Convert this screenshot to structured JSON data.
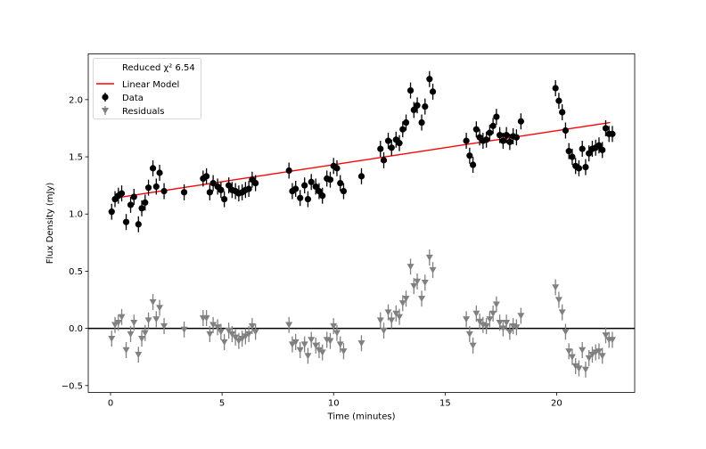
{
  "chart_data": {
    "type": "scatter",
    "xlabel": "Time (minutes)",
    "ylabel": "Flux Density (mJy)",
    "xlim": [
      -1.0,
      23.5
    ],
    "ylim": [
      -0.56,
      2.4
    ],
    "xticks": [
      0,
      5,
      10,
      15,
      20
    ],
    "yticks": [
      -0.5,
      0.0,
      0.5,
      1.0,
      1.5,
      2.0
    ],
    "xtick_labels": [
      "0",
      "5",
      "10",
      "15",
      "20"
    ],
    "ytick_labels": [
      "−0.5",
      "0.0",
      "0.5",
      "1.0",
      "1.5",
      "2.0"
    ],
    "zero_line": 0.0,
    "grid": false,
    "legend": {
      "placement": "top-left",
      "entries": [
        "Reduced χ² 6.54",
        "Linear Model",
        "Data",
        "Residuals"
      ]
    },
    "linear_model": {
      "name": "Linear Model",
      "color": "#ff0000",
      "x": [
        0.2,
        22.4
      ],
      "y": [
        1.14,
        1.8
      ]
    },
    "error_bar": 0.07,
    "series": [
      {
        "name": "Data",
        "marker": "circle",
        "color": "#000000",
        "x": [
          0.05,
          0.2,
          0.35,
          0.5,
          0.7,
          0.9,
          1.05,
          1.25,
          1.4,
          1.55,
          1.7,
          1.9,
          2.05,
          2.2,
          2.4,
          3.3,
          4.15,
          4.3,
          4.45,
          4.6,
          4.8,
          4.95,
          5.1,
          5.3,
          5.45,
          5.6,
          5.75,
          5.9,
          6.05,
          6.2,
          6.35,
          6.5,
          8.0,
          8.15,
          8.3,
          8.5,
          8.7,
          8.85,
          9.0,
          9.2,
          9.35,
          9.5,
          9.7,
          9.85,
          10.0,
          10.15,
          10.3,
          10.45,
          11.25,
          12.1,
          12.25,
          12.45,
          12.6,
          12.8,
          12.95,
          13.1,
          13.25,
          13.45,
          13.6,
          13.75,
          13.95,
          14.1,
          14.3,
          14.45,
          15.95,
          16.1,
          16.25,
          16.4,
          16.55,
          16.7,
          16.85,
          17.0,
          17.15,
          17.3,
          17.45,
          17.6,
          17.75,
          17.9,
          18.05,
          18.2,
          18.4,
          19.95,
          20.1,
          20.25,
          20.4,
          20.55,
          20.7,
          20.85,
          21.0,
          21.15,
          21.3,
          21.45,
          21.6,
          21.75,
          21.9,
          22.05,
          22.2,
          22.35,
          22.5
        ],
        "y": [
          1.02,
          1.13,
          1.16,
          1.18,
          0.93,
          1.08,
          1.15,
          0.91,
          1.05,
          1.1,
          1.23,
          1.4,
          1.24,
          1.36,
          1.2,
          1.19,
          1.31,
          1.33,
          1.19,
          1.27,
          1.24,
          1.21,
          1.13,
          1.25,
          1.21,
          1.2,
          1.18,
          1.19,
          1.21,
          1.22,
          1.3,
          1.27,
          1.38,
          1.2,
          1.22,
          1.14,
          1.25,
          1.13,
          1.28,
          1.24,
          1.2,
          1.16,
          1.31,
          1.3,
          1.42,
          1.4,
          1.27,
          1.2,
          1.33,
          1.57,
          1.47,
          1.64,
          1.58,
          1.65,
          1.62,
          1.74,
          1.8,
          2.08,
          1.91,
          1.95,
          1.8,
          1.94,
          2.18,
          2.07,
          1.64,
          1.51,
          1.43,
          1.74,
          1.67,
          1.64,
          1.65,
          1.71,
          1.77,
          1.85,
          1.69,
          1.64,
          1.69,
          1.63,
          1.68,
          1.67,
          1.81,
          2.1,
          1.99,
          1.89,
          1.73,
          1.55,
          1.5,
          1.42,
          1.4,
          1.57,
          1.41,
          1.53,
          1.57,
          1.58,
          1.6,
          1.56,
          1.75,
          1.7,
          1.7
        ]
      },
      {
        "name": "Residuals",
        "marker": "triangle-down",
        "color": "#808080",
        "x": [
          0.05,
          0.2,
          0.35,
          0.5,
          0.7,
          0.9,
          1.05,
          1.25,
          1.4,
          1.55,
          1.7,
          1.9,
          2.05,
          2.2,
          2.4,
          3.3,
          4.15,
          4.3,
          4.45,
          4.6,
          4.8,
          4.95,
          5.1,
          5.3,
          5.45,
          5.6,
          5.75,
          5.9,
          6.05,
          6.2,
          6.35,
          6.5,
          8.0,
          8.15,
          8.3,
          8.5,
          8.7,
          8.85,
          9.0,
          9.2,
          9.35,
          9.5,
          9.7,
          9.85,
          10.0,
          10.15,
          10.3,
          10.45,
          11.25,
          12.1,
          12.25,
          12.45,
          12.6,
          12.8,
          12.95,
          13.1,
          13.25,
          13.45,
          13.6,
          13.75,
          13.95,
          14.1,
          14.3,
          14.45,
          15.95,
          16.1,
          16.25,
          16.4,
          16.55,
          16.7,
          16.85,
          17.0,
          17.15,
          17.3,
          17.45,
          17.6,
          17.75,
          17.9,
          18.05,
          18.2,
          18.4,
          19.95,
          20.1,
          20.25,
          20.4,
          20.55,
          20.7,
          20.85,
          21.0,
          21.15,
          21.3,
          21.45,
          21.6,
          21.75,
          21.9,
          22.05,
          22.2,
          22.35,
          22.5
        ],
        "y": [
          -0.09,
          0.03,
          0.05,
          0.1,
          -0.19,
          -0.05,
          0.05,
          -0.23,
          -0.09,
          -0.04,
          0.07,
          0.23,
          0.08,
          0.18,
          0.02,
          -0.01,
          0.09,
          0.09,
          -0.05,
          0.03,
          0.01,
          -0.03,
          -0.12,
          -0.02,
          -0.05,
          -0.08,
          -0.11,
          -0.09,
          -0.07,
          -0.05,
          0.02,
          -0.03,
          0.03,
          -0.14,
          -0.12,
          -0.19,
          -0.14,
          -0.24,
          -0.1,
          -0.15,
          -0.19,
          -0.21,
          -0.1,
          -0.11,
          0.02,
          -0.04,
          -0.14,
          -0.2,
          -0.13,
          0.07,
          -0.02,
          0.14,
          0.07,
          0.13,
          0.1,
          0.22,
          0.26,
          0.54,
          0.37,
          0.41,
          0.26,
          0.4,
          0.62,
          0.51,
          0.08,
          -0.05,
          -0.15,
          0.13,
          0.06,
          0.03,
          0.02,
          0.08,
          0.13,
          0.21,
          0.05,
          0.0,
          0.05,
          -0.03,
          0.02,
          0.01,
          0.11,
          0.36,
          0.25,
          0.14,
          -0.03,
          -0.2,
          -0.25,
          -0.33,
          -0.35,
          -0.19,
          -0.36,
          -0.26,
          -0.23,
          -0.21,
          -0.2,
          -0.24,
          -0.06,
          -0.1,
          -0.1
        ]
      }
    ]
  }
}
